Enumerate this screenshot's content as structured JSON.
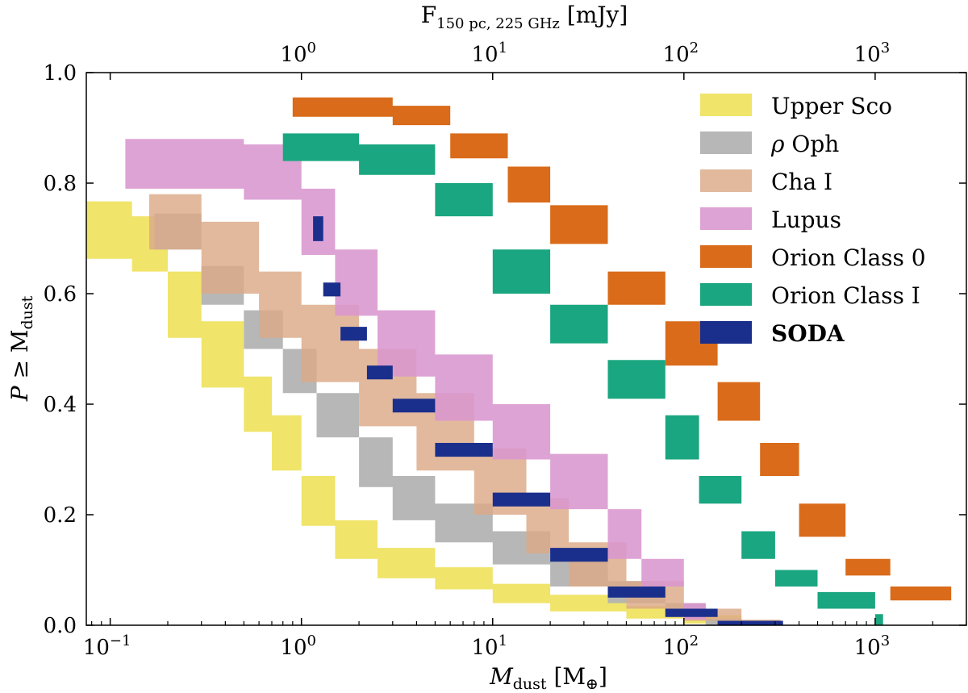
{
  "chart_data": {
    "type": "area",
    "xscale": "log",
    "xlim": [
      0.075,
      3000
    ],
    "ylim": [
      0.0,
      1.0
    ],
    "xlabel": {
      "main": "M",
      "sub": "dust",
      "unit": "[M",
      "unit_sub": "⊕",
      "unit_end": "]"
    },
    "ylabel": {
      "main": "P ≥ M",
      "sub": "dust"
    },
    "top_xlabel": {
      "main": "F",
      "sub": "150 pc, 225 GHz",
      "unit": "[mJy]"
    },
    "x_ticks": [
      {
        "value": 0.1,
        "base": "10",
        "exp": "−1"
      },
      {
        "value": 1,
        "base": "10",
        "exp": "0"
      },
      {
        "value": 10,
        "base": "10",
        "exp": "1"
      },
      {
        "value": 100,
        "base": "10",
        "exp": "2"
      },
      {
        "value": 1000,
        "base": "10",
        "exp": "3"
      }
    ],
    "top_ticks": [
      {
        "mass": 1.0,
        "base": "10",
        "exp": "0"
      },
      {
        "mass": 10.0,
        "base": "10",
        "exp": "1"
      },
      {
        "mass": 100.0,
        "base": "10",
        "exp": "2"
      },
      {
        "mass": 1000.0,
        "base": "10",
        "exp": "3"
      }
    ],
    "y_ticks": [
      "0.0",
      "0.2",
      "0.4",
      "0.6",
      "0.8",
      "1.0"
    ],
    "series": [
      {
        "name": "Upper Sco",
        "color": "#f0e46a",
        "opacity": 1.0,
        "points": [
          [
            0.075,
            0.767,
            0.663
          ],
          [
            0.13,
            0.74,
            0.64
          ],
          [
            0.2,
            0.64,
            0.52
          ],
          [
            0.3,
            0.55,
            0.43
          ],
          [
            0.5,
            0.45,
            0.35
          ],
          [
            0.7,
            0.38,
            0.28
          ],
          [
            1.0,
            0.27,
            0.18
          ],
          [
            1.5,
            0.19,
            0.12
          ],
          [
            2.5,
            0.14,
            0.085
          ],
          [
            5,
            0.105,
            0.065
          ],
          [
            10,
            0.075,
            0.04
          ],
          [
            20,
            0.055,
            0.025
          ],
          [
            50,
            0.035,
            0.012
          ],
          [
            100,
            0.018,
            0.003
          ],
          [
            200,
            0.005,
            0.0
          ],
          [
            320,
            0.0,
            0.0
          ]
        ]
      },
      {
        "name": "ρ Oph",
        "color": "#b3b3b3",
        "opacity": 0.95,
        "points": [
          [
            0.17,
            0.745,
            0.68
          ],
          [
            0.3,
            0.65,
            0.58
          ],
          [
            0.5,
            0.57,
            0.5
          ],
          [
            0.8,
            0.5,
            0.42
          ],
          [
            1.2,
            0.42,
            0.34
          ],
          [
            2,
            0.34,
            0.25
          ],
          [
            3,
            0.27,
            0.19
          ],
          [
            5,
            0.22,
            0.15
          ],
          [
            10,
            0.17,
            0.11
          ],
          [
            20,
            0.12,
            0.07
          ],
          [
            40,
            0.08,
            0.04
          ],
          [
            80,
            0.04,
            0.015
          ],
          [
            130,
            0.012,
            0.0
          ],
          [
            200,
            0.0,
            0.0
          ]
        ]
      },
      {
        "name": "Cha I",
        "color": "#dca988",
        "opacity": 0.82,
        "points": [
          [
            0.16,
            0.78,
            0.68
          ],
          [
            0.3,
            0.73,
            0.6
          ],
          [
            0.6,
            0.64,
            0.52
          ],
          [
            1.0,
            0.58,
            0.44
          ],
          [
            2,
            0.5,
            0.36
          ],
          [
            4,
            0.42,
            0.28
          ],
          [
            8,
            0.32,
            0.2
          ],
          [
            15,
            0.23,
            0.13
          ],
          [
            25,
            0.15,
            0.07
          ],
          [
            50,
            0.08,
            0.03
          ],
          [
            100,
            0.03,
            0.008
          ],
          [
            200,
            0.01,
            0.0
          ],
          [
            320,
            0.0,
            0.0
          ]
        ]
      },
      {
        "name": "Lupus",
        "color": "#d996cf",
        "opacity": 0.88,
        "points": [
          [
            0.12,
            0.88,
            0.79
          ],
          [
            0.5,
            0.87,
            0.77
          ],
          [
            1.0,
            0.79,
            0.67
          ],
          [
            1.5,
            0.68,
            0.56
          ],
          [
            2.5,
            0.57,
            0.45
          ],
          [
            5,
            0.49,
            0.37
          ],
          [
            10,
            0.4,
            0.3
          ],
          [
            20,
            0.31,
            0.21
          ],
          [
            40,
            0.21,
            0.12
          ],
          [
            60,
            0.12,
            0.07
          ],
          [
            100,
            0.04,
            0.01
          ],
          [
            130,
            0.0,
            0.0
          ]
        ]
      },
      {
        "name": "Orion Class 0",
        "color": "#d96b1a",
        "opacity": 1.0,
        "points": [
          [
            0.9,
            0.955,
            0.92
          ],
          [
            3,
            0.94,
            0.905
          ],
          [
            6,
            0.89,
            0.845
          ],
          [
            12,
            0.83,
            0.765
          ],
          [
            20,
            0.76,
            0.69
          ],
          [
            40,
            0.64,
            0.58
          ],
          [
            80,
            0.55,
            0.47
          ],
          [
            150,
            0.44,
            0.37
          ],
          [
            250,
            0.33,
            0.27
          ],
          [
            400,
            0.22,
            0.16
          ],
          [
            700,
            0.12,
            0.09
          ],
          [
            1200,
            0.07,
            0.045
          ],
          [
            2500,
            0.025,
            0.0
          ]
        ]
      },
      {
        "name": "Orion Class I",
        "color": "#1aa680",
        "opacity": 1.0,
        "points": [
          [
            0.8,
            0.89,
            0.84
          ],
          [
            2,
            0.87,
            0.815
          ],
          [
            5,
            0.8,
            0.74
          ],
          [
            10,
            0.68,
            0.6
          ],
          [
            20,
            0.58,
            0.51
          ],
          [
            40,
            0.48,
            0.41
          ],
          [
            80,
            0.38,
            0.3
          ],
          [
            120,
            0.27,
            0.22
          ],
          [
            200,
            0.17,
            0.12
          ],
          [
            300,
            0.1,
            0.07
          ],
          [
            500,
            0.06,
            0.03
          ],
          [
            1000,
            0.02,
            0.0
          ],
          [
            1100,
            0.0,
            0.0
          ]
        ]
      },
      {
        "name": "SODA",
        "color": "#1a2f8c",
        "opacity": 1.0,
        "bold": true,
        "points": [
          [
            1.15,
            0.74,
            0.695
          ],
          [
            1.3,
            0.62,
            0.595
          ],
          [
            1.6,
            0.54,
            0.515
          ],
          [
            2.2,
            0.47,
            0.445
          ],
          [
            3,
            0.41,
            0.385
          ],
          [
            5,
            0.33,
            0.305
          ],
          [
            10,
            0.24,
            0.215
          ],
          [
            20,
            0.14,
            0.115
          ],
          [
            40,
            0.07,
            0.05
          ],
          [
            80,
            0.03,
            0.015
          ],
          [
            150,
            0.008,
            0.0
          ],
          [
            330,
            0.0,
            0.0
          ]
        ]
      }
    ],
    "legend_position": "top-right"
  }
}
